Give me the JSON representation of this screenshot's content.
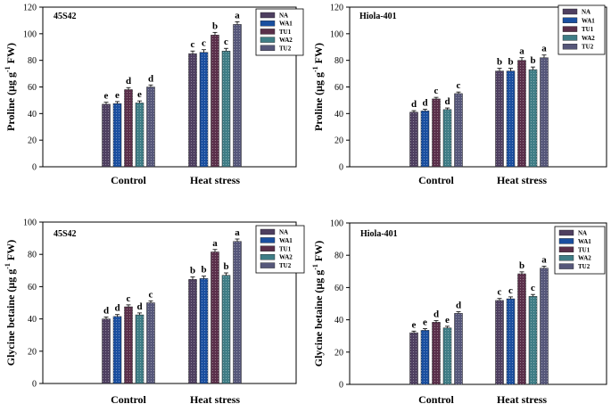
{
  "colors": {
    "NA": "#4e3f60",
    "WA1": "#1a4fa0",
    "TU1": "#5a2f4a",
    "WA2": "#3f7d86",
    "TU2": "#56577a"
  },
  "chart_data": [
    {
      "type": "bar",
      "title": "45S42",
      "ylabel": "Proline (μg g-1 FW)",
      "ylabel_parts": [
        "Proline (μg g",
        "-1",
        " FW)"
      ],
      "categories": [
        "Control",
        "Heat stress"
      ],
      "legend": [
        "NA",
        "WA1",
        "TU1",
        "WA2",
        "TU2"
      ],
      "legend_placement": "top-right",
      "ylim": [
        0,
        120
      ],
      "yticks": [
        0,
        20,
        40,
        60,
        80,
        100,
        120
      ],
      "series": [
        {
          "name": "NA",
          "values": [
            47,
            85
          ],
          "errors": [
            1.5,
            2
          ],
          "letters": [
            "e",
            "c"
          ]
        },
        {
          "name": "WA1",
          "values": [
            47.5,
            86
          ],
          "errors": [
            1.5,
            2
          ],
          "letters": [
            "e",
            "c"
          ]
        },
        {
          "name": "TU1",
          "values": [
            58,
            99
          ],
          "errors": [
            1.5,
            2
          ],
          "letters": [
            "d",
            "b"
          ]
        },
        {
          "name": "WA2",
          "values": [
            48,
            87
          ],
          "errors": [
            1.5,
            2
          ],
          "letters": [
            "e",
            "c"
          ]
        },
        {
          "name": "TU2",
          "values": [
            60,
            107
          ],
          "errors": [
            1.5,
            2
          ],
          "letters": [
            "d",
            "a"
          ]
        }
      ]
    },
    {
      "type": "bar",
      "title": "Hiola-401",
      "ylabel": "Proline (μg g-1 FW)",
      "ylabel_parts": [
        "Proline (μg g",
        "-1",
        " FW)"
      ],
      "categories": [
        "Control",
        "Heat stress"
      ],
      "legend": [
        "NA",
        "WA1",
        "TU1",
        "WA2",
        "TU2"
      ],
      "legend_placement": "top-right",
      "ylim": [
        0,
        120
      ],
      "yticks": [
        0,
        20,
        40,
        60,
        80,
        100,
        120
      ],
      "series": [
        {
          "name": "NA",
          "values": [
            41,
            72
          ],
          "errors": [
            1.2,
            2
          ],
          "letters": [
            "d",
            "b"
          ]
        },
        {
          "name": "WA1",
          "values": [
            42,
            72
          ],
          "errors": [
            1.2,
            2
          ],
          "letters": [
            "d",
            "b"
          ]
        },
        {
          "name": "TU1",
          "values": [
            51,
            80
          ],
          "errors": [
            1.2,
            2
          ],
          "letters": [
            "c",
            "a"
          ]
        },
        {
          "name": "WA2",
          "values": [
            43,
            73
          ],
          "errors": [
            1.2,
            2
          ],
          "letters": [
            "d",
            "b"
          ]
        },
        {
          "name": "TU2",
          "values": [
            55,
            82
          ],
          "errors": [
            1.2,
            2
          ],
          "letters": [
            "c",
            "a"
          ]
        }
      ]
    },
    {
      "type": "bar",
      "title": "45S42",
      "ylabel": "Glycine betaine (μg g-1 FW)",
      "ylabel_parts": [
        "Glycine betaine (μg g",
        "-1",
        " FW)"
      ],
      "categories": [
        "Control",
        "Heat stress"
      ],
      "legend": [
        "NA",
        "WA1",
        "TU1",
        "WA2",
        "TU2"
      ],
      "legend_placement": "top-right",
      "ylim": [
        0,
        100
      ],
      "yticks": [
        0,
        20,
        40,
        60,
        80,
        100
      ],
      "series": [
        {
          "name": "NA",
          "values": [
            40,
            64.5
          ],
          "errors": [
            1.2,
            1.5
          ],
          "letters": [
            "d",
            "b"
          ]
        },
        {
          "name": "WA1",
          "values": [
            41.5,
            65
          ],
          "errors": [
            1.2,
            1.5
          ],
          "letters": [
            "d",
            "b"
          ]
        },
        {
          "name": "TU1",
          "values": [
            47.5,
            81.5
          ],
          "errors": [
            1.2,
            1.5
          ],
          "letters": [
            "c",
            "a"
          ]
        },
        {
          "name": "WA2",
          "values": [
            42.5,
            67
          ],
          "errors": [
            1.2,
            1.5
          ],
          "letters": [
            "d",
            "b"
          ]
        },
        {
          "name": "TU2",
          "values": [
            50,
            88
          ],
          "errors": [
            1.2,
            1.5
          ],
          "letters": [
            "c",
            "a"
          ]
        }
      ]
    },
    {
      "type": "bar",
      "title": "Hiola-401",
      "ylabel": "Glycine betaine (μg g-1 FW)",
      "ylabel_parts": [
        "Glycine betaine (μg g",
        "-1",
        " FW)"
      ],
      "categories": [
        "Control",
        "Heat stress"
      ],
      "legend": [
        "NA",
        "WA1",
        "TU1",
        "WA2",
        "TU2"
      ],
      "legend_placement": "top-right",
      "ylim": [
        0,
        100
      ],
      "yticks": [
        0,
        20,
        40,
        60,
        80,
        100
      ],
      "series": [
        {
          "name": "NA",
          "values": [
            32,
            52
          ],
          "errors": [
            1,
            1.2
          ],
          "letters": [
            "e",
            "c"
          ]
        },
        {
          "name": "WA1",
          "values": [
            33.5,
            53
          ],
          "errors": [
            1,
            1.2
          ],
          "letters": [
            "e",
            "c"
          ]
        },
        {
          "name": "TU1",
          "values": [
            38.5,
            68.5
          ],
          "errors": [
            1,
            1.2
          ],
          "letters": [
            "d",
            "b"
          ]
        },
        {
          "name": "WA2",
          "values": [
            35,
            54.5
          ],
          "errors": [
            1,
            1.2
          ],
          "letters": [
            "e",
            "c"
          ]
        },
        {
          "name": "TU2",
          "values": [
            44,
            72
          ],
          "errors": [
            1,
            1.2
          ],
          "letters": [
            "d",
            "a"
          ]
        }
      ]
    }
  ]
}
